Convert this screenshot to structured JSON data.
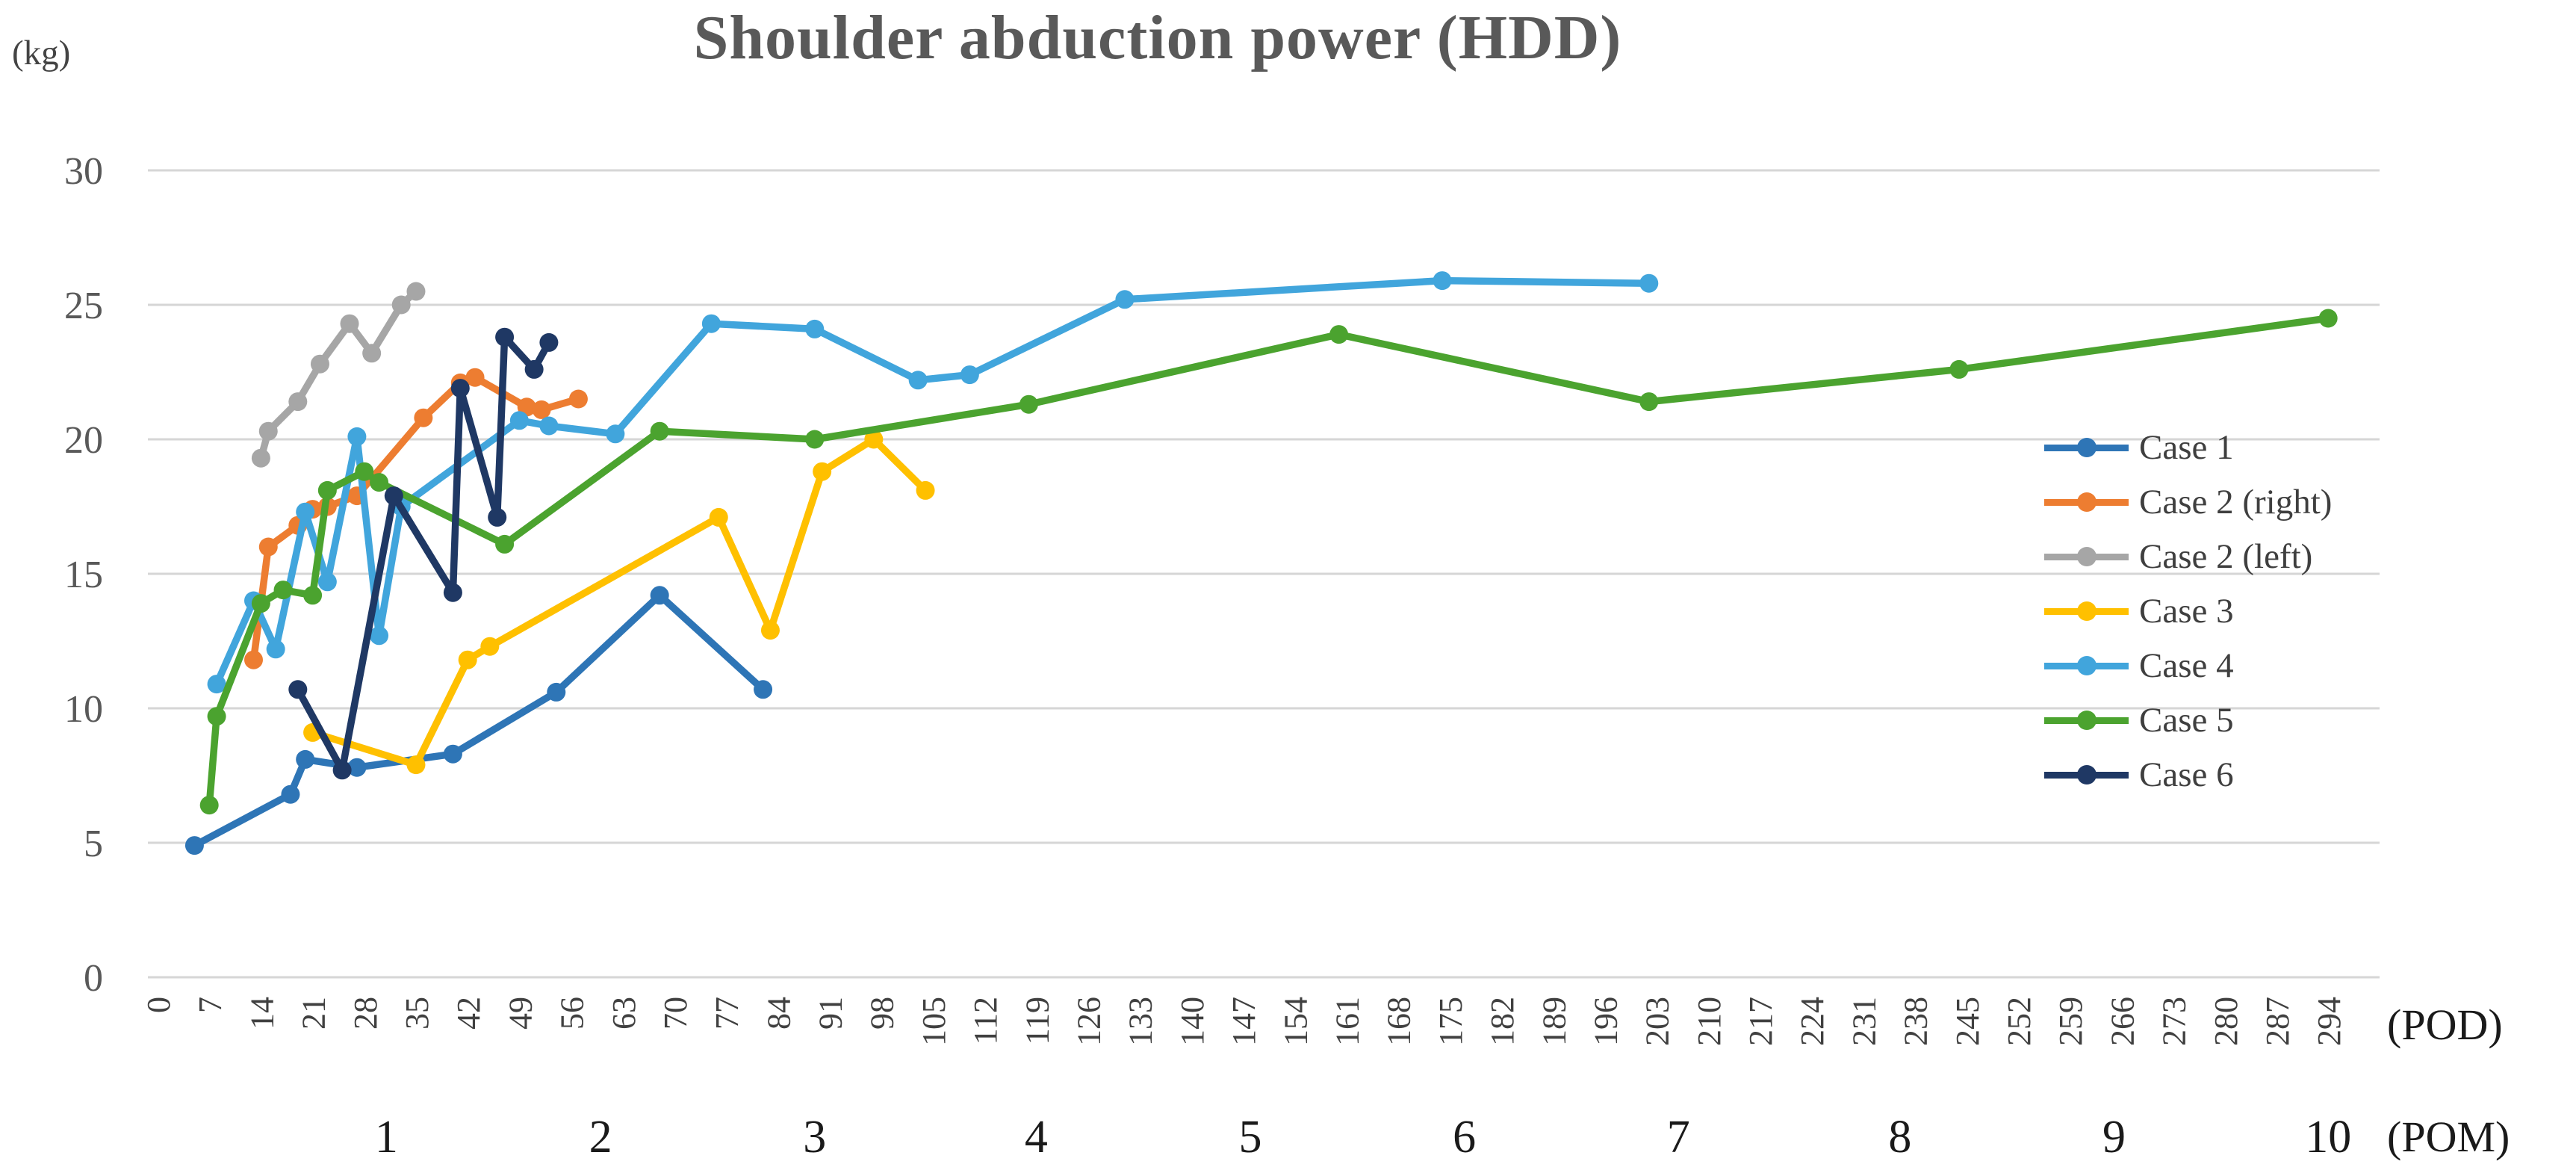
{
  "chart_data": {
    "type": "line",
    "title": "Shoulder abduction power (HDD)",
    "y_unit": "(kg)",
    "x_unit": "(POD)",
    "x2_unit": "(POM)",
    "ylim": [
      0,
      30
    ],
    "y_ticks": [
      0,
      5,
      10,
      15,
      20,
      25,
      30
    ],
    "x_ticks": [
      0,
      7,
      14,
      21,
      28,
      35,
      42,
      49,
      56,
      63,
      70,
      77,
      84,
      91,
      98,
      105,
      112,
      119,
      126,
      133,
      140,
      147,
      154,
      161,
      168,
      175,
      182,
      189,
      196,
      203,
      210,
      217,
      224,
      231,
      238,
      245,
      252,
      259,
      266,
      273,
      280,
      287,
      294
    ],
    "pom_ticks": [
      {
        "label": "1",
        "pod": 31
      },
      {
        "label": "2",
        "pod": 60
      },
      {
        "label": "3",
        "pod": 89
      },
      {
        "label": "4",
        "pod": 119
      },
      {
        "label": "5",
        "pod": 148
      },
      {
        "label": "6",
        "pod": 177
      },
      {
        "label": "7",
        "pod": 206
      },
      {
        "label": "8",
        "pod": 236
      },
      {
        "label": "9",
        "pod": 265
      },
      {
        "label": "10",
        "pod": 294
      }
    ],
    "grid": true,
    "legend_position": "right",
    "colors": {
      "grid": "#d6d6d6",
      "axis_text": "#595959",
      "x_tick_text": "#404040",
      "pom_text": "#1a1a1a",
      "title_text": "#595959"
    },
    "series": [
      {
        "name": "Case 1",
        "color": "#2E75B6",
        "points": [
          [
            5,
            4.9
          ],
          [
            18,
            6.8
          ],
          [
            20,
            8.1
          ],
          [
            27,
            7.8
          ],
          [
            40,
            8.3
          ],
          [
            54,
            10.6
          ],
          [
            68,
            14.2
          ],
          [
            82,
            10.7
          ]
        ]
      },
      {
        "name": "Case 2 (right)",
        "color": "#ED7D31",
        "points": [
          [
            13,
            11.8
          ],
          [
            15,
            16.0
          ],
          [
            19,
            16.8
          ],
          [
            21,
            17.4
          ],
          [
            23,
            17.5
          ],
          [
            27,
            17.9
          ],
          [
            36,
            20.8
          ],
          [
            41,
            22.1
          ],
          [
            43,
            22.3
          ],
          [
            50,
            21.2
          ],
          [
            52,
            21.1
          ],
          [
            57,
            21.5
          ]
        ]
      },
      {
        "name": "Case 2 (left)",
        "color": "#A6A6A6",
        "points": [
          [
            14,
            19.3
          ],
          [
            15,
            20.3
          ],
          [
            19,
            21.4
          ],
          [
            22,
            22.8
          ],
          [
            26,
            24.3
          ],
          [
            29,
            23.2
          ],
          [
            33,
            25.0
          ],
          [
            35,
            25.5
          ]
        ]
      },
      {
        "name": "Case 3",
        "color": "#FFC000",
        "points": [
          [
            21,
            9.1
          ],
          [
            35,
            7.9
          ],
          [
            42,
            11.8
          ],
          [
            45,
            12.3
          ],
          [
            76,
            17.1
          ],
          [
            83,
            12.9
          ],
          [
            90,
            18.8
          ],
          [
            97,
            20.0
          ],
          [
            104,
            18.1
          ]
        ]
      },
      {
        "name": "Case 4",
        "color": "#41A5DC",
        "points": [
          [
            8,
            10.9
          ],
          [
            13,
            14.0
          ],
          [
            16,
            12.2
          ],
          [
            20,
            17.3
          ],
          [
            23,
            14.7
          ],
          [
            27,
            20.1
          ],
          [
            30,
            12.7
          ],
          [
            33,
            17.5
          ],
          [
            49,
            20.7
          ],
          [
            53,
            20.5
          ],
          [
            62,
            20.2
          ],
          [
            75,
            24.3
          ],
          [
            89,
            24.1
          ],
          [
            103,
            22.2
          ],
          [
            110,
            22.4
          ],
          [
            131,
            25.2
          ],
          [
            174,
            25.9
          ],
          [
            202,
            25.8
          ]
        ]
      },
      {
        "name": "Case 5",
        "color": "#4BA32F",
        "points": [
          [
            7,
            6.4
          ],
          [
            8,
            9.7
          ],
          [
            14,
            13.9
          ],
          [
            17,
            14.4
          ],
          [
            21,
            14.2
          ],
          [
            23,
            18.1
          ],
          [
            28,
            18.8
          ],
          [
            30,
            18.4
          ],
          [
            47,
            16.1
          ],
          [
            68,
            20.3
          ],
          [
            89,
            20.0
          ],
          [
            118,
            21.3
          ],
          [
            160,
            23.9
          ],
          [
            202,
            21.4
          ],
          [
            244,
            22.6
          ],
          [
            294,
            24.5
          ]
        ]
      },
      {
        "name": "Case 6",
        "color": "#1F3864",
        "points": [
          [
            19,
            10.7
          ],
          [
            25,
            7.7
          ],
          [
            32,
            17.9
          ],
          [
            40,
            14.3
          ],
          [
            41,
            21.9
          ],
          [
            46,
            17.1
          ],
          [
            47,
            23.8
          ],
          [
            51,
            22.6
          ],
          [
            53,
            23.6
          ]
        ]
      }
    ]
  }
}
